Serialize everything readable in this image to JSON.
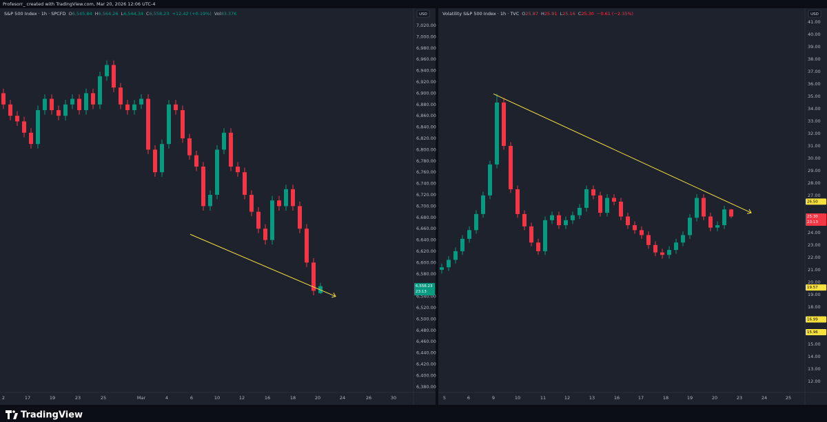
{
  "header": "Profesorr_ created with TradingView.com, Mar 20, 2026 12:06 UTC-4",
  "footer": "TradingView",
  "chart_data": [
    {
      "type": "candlestick",
      "symbol": "S&P 500 Index · 1h · SPCFD",
      "legend_items": [
        {
          "key": "O",
          "text": "6,545.84"
        },
        {
          "key": "H",
          "text": "6,564.26"
        },
        {
          "key": "L",
          "text": "6,544.34"
        },
        {
          "key": "C",
          "text": "6,558.23"
        },
        {
          "key": "",
          "text": "+12.42 (+0.19%)"
        },
        {
          "key": "Vol",
          "text": "83.37K"
        }
      ],
      "legend_color": "#089981",
      "currency": "USD",
      "up_color": "#089981",
      "down_color": "#f23645",
      "x": [
        1,
        3,
        5,
        7,
        9,
        11,
        13,
        15,
        17,
        19,
        21,
        23,
        25,
        27,
        29,
        31,
        33,
        35,
        37,
        39,
        41,
        43,
        45,
        47,
        49,
        51,
        53,
        55,
        57,
        59,
        61,
        63,
        65,
        67,
        69,
        71,
        73,
        75,
        77,
        79,
        81,
        83,
        85,
        87,
        89,
        91,
        93
      ],
      "open": [
        6900,
        6880,
        6860,
        6850,
        6830,
        6810,
        6870,
        6890,
        6870,
        6860,
        6880,
        6890,
        6870,
        6900,
        6880,
        6930,
        6950,
        6910,
        6880,
        6870,
        6880,
        6890,
        6800,
        6760,
        6810,
        6880,
        6870,
        6820,
        6790,
        6770,
        6700,
        6720,
        6800,
        6830,
        6770,
        6760,
        6720,
        6690,
        6660,
        6640,
        6710,
        6700,
        6730,
        6700,
        6660,
        6600,
        6545.84
      ],
      "high": [
        6908,
        6888,
        6868,
        6858,
        6838,
        6878,
        6898,
        6898,
        6878,
        6888,
        6898,
        6898,
        6908,
        6908,
        6938,
        6958,
        6958,
        6918,
        6888,
        6888,
        6898,
        6898,
        6808,
        6818,
        6888,
        6888,
        6878,
        6828,
        6798,
        6778,
        6728,
        6808,
        6838,
        6838,
        6778,
        6768,
        6728,
        6698,
        6668,
        6718,
        6718,
        6738,
        6738,
        6708,
        6668,
        6608,
        6564.26
      ],
      "low": [
        6872,
        6852,
        6842,
        6822,
        6802,
        6802,
        6862,
        6862,
        6852,
        6852,
        6872,
        6862,
        6862,
        6872,
        6872,
        6922,
        6902,
        6872,
        6862,
        6862,
        6872,
        6792,
        6752,
        6752,
        6802,
        6862,
        6812,
        6782,
        6762,
        6692,
        6692,
        6712,
        6792,
        6762,
        6752,
        6712,
        6682,
        6652,
        6632,
        6632,
        6692,
        6692,
        6692,
        6652,
        6592,
        6542,
        6544.34
      ],
      "close": [
        6880,
        6860,
        6850,
        6830,
        6810,
        6870,
        6890,
        6870,
        6860,
        6880,
        6890,
        6870,
        6900,
        6880,
        6930,
        6950,
        6910,
        6880,
        6870,
        6880,
        6890,
        6800,
        6760,
        6810,
        6880,
        6870,
        6820,
        6790,
        6770,
        6700,
        6720,
        6800,
        6830,
        6770,
        6760,
        6720,
        6690,
        6660,
        6640,
        6710,
        6700,
        6730,
        6700,
        6660,
        6600,
        6550,
        6558.23
      ],
      "xlim": [
        0,
        120
      ],
      "xticks": [
        {
          "value": 1,
          "label": "2"
        },
        {
          "value": 8,
          "label": "17"
        },
        {
          "value": 15.2,
          "label": "19"
        },
        {
          "value": 22.6,
          "label": "23"
        },
        {
          "value": 30,
          "label": "25"
        },
        {
          "value": 41,
          "label": "Mar"
        },
        {
          "value": 48.4,
          "label": "4"
        },
        {
          "value": 55.6,
          "label": "6"
        },
        {
          "value": 63,
          "label": "10"
        },
        {
          "value": 70.2,
          "label": "12"
        },
        {
          "value": 77.6,
          "label": "16"
        },
        {
          "value": 85,
          "label": "18"
        },
        {
          "value": 92.2,
          "label": "20"
        },
        {
          "value": 99.4,
          "label": "24"
        },
        {
          "value": 107,
          "label": "26"
        },
        {
          "value": 114.2,
          "label": "30"
        }
      ],
      "ylim": [
        6370,
        7048
      ],
      "yticks": [
        {
          "value": 6380,
          "label": "6,380.00"
        },
        {
          "value": 6400,
          "label": "6,400.00"
        },
        {
          "value": 6420,
          "label": "6,420.00"
        },
        {
          "value": 6440,
          "label": "6,440.00"
        },
        {
          "value": 6460,
          "label": "6,460.00"
        },
        {
          "value": 6480,
          "label": "6,480.00"
        },
        {
          "value": 6500,
          "label": "6,500.00"
        },
        {
          "value": 6520,
          "label": "6,520.00"
        },
        {
          "value": 6540,
          "label": "6,540.00"
        },
        {
          "value": 6580,
          "label": "6,580.00"
        },
        {
          "value": 6600,
          "label": "6,600.00"
        },
        {
          "value": 6620,
          "label": "6,620.00"
        },
        {
          "value": 6640,
          "label": "6,640.00"
        },
        {
          "value": 6660,
          "label": "6,660.00"
        },
        {
          "value": 6680,
          "label": "6,680.00"
        },
        {
          "value": 6700,
          "label": "6,700.00"
        },
        {
          "value": 6720,
          "label": "6,720.00"
        },
        {
          "value": 6740,
          "label": "6,740.00"
        },
        {
          "value": 6760,
          "label": "6,760.00"
        },
        {
          "value": 6780,
          "label": "6,780.00"
        },
        {
          "value": 6800,
          "label": "6,800.00"
        },
        {
          "value": 6820,
          "label": "6,820.00"
        },
        {
          "value": 6840,
          "label": "6,840.00"
        },
        {
          "value": 6860,
          "label": "6,860.00"
        },
        {
          "value": 6880,
          "label": "6,880.00"
        },
        {
          "value": 6900,
          "label": "6,900.00"
        },
        {
          "value": 6920,
          "label": "6,920.00"
        },
        {
          "value": 6940,
          "label": "6,940.00"
        },
        {
          "value": 6960,
          "label": "6,960.00"
        },
        {
          "value": 6980,
          "label": "6,980.00"
        },
        {
          "value": 7000,
          "label": "7,000.00"
        },
        {
          "value": 7020,
          "label": "7,020.00"
        }
      ],
      "grid": false,
      "trendline": {
        "x": [
          55.2,
          97.4
        ],
        "y": [
          6650,
          6540
        ],
        "color": "#f7e13c"
      },
      "price_labels": [
        {
          "value": 6558.23,
          "label": "6,558.23",
          "color": "#089981",
          "text_color": "#ffffff",
          "countdown": "23:13"
        }
      ]
    },
    {
      "type": "candlestick",
      "symbol": "Volatility S&P 500 Index · 1h · TVC",
      "legend_items": [
        {
          "key": "O",
          "text": "25.87"
        },
        {
          "key": "H",
          "text": "25.91"
        },
        {
          "key": "L",
          "text": "25.16"
        },
        {
          "key": "C",
          "text": "25.30"
        },
        {
          "key": "",
          "text": "−0.61 (−2.35%)"
        }
      ],
      "legend_color": "#f23645",
      "currency": "USD",
      "up_color": "#089981",
      "down_color": "#f23645",
      "x": [
        1,
        3,
        5,
        7,
        9,
        11,
        13,
        15,
        17,
        19,
        21,
        23,
        25,
        27,
        29,
        31,
        33,
        35,
        37,
        39,
        41,
        43,
        45,
        47,
        49,
        51,
        53,
        55,
        57,
        59,
        61,
        63,
        65,
        67,
        69,
        71,
        73,
        75,
        77,
        79,
        81,
        83,
        85
      ],
      "open": [
        21.0,
        21.2,
        21.8,
        22.5,
        23.5,
        24.2,
        25.5,
        27,
        29.5,
        34.5,
        31,
        27.5,
        25.5,
        24.5,
        23.2,
        22.5,
        25,
        25.4,
        24.6,
        25,
        25.4,
        26,
        27.5,
        27,
        25.6,
        26.8,
        26.5,
        25.3,
        24.6,
        24.2,
        23.8,
        23,
        22.4,
        22.2,
        22.6,
        23.2,
        23.8,
        25.2,
        26.8,
        25.3,
        24.4,
        24.6,
        25.87
      ],
      "high": [
        21.5,
        22.1,
        22.8,
        23.8,
        24.5,
        25.8,
        27.3,
        29.8,
        35.2,
        34.8,
        31.3,
        27.8,
        25.8,
        24.8,
        23.5,
        25.3,
        25.7,
        25.7,
        25.3,
        25.7,
        26.3,
        27.8,
        27.8,
        27.3,
        27.1,
        27.1,
        26.8,
        25.6,
        24.9,
        24.5,
        24.1,
        23.3,
        22.7,
        22.9,
        23.5,
        24.1,
        25.5,
        27.1,
        27.1,
        25.6,
        24.9,
        26.17,
        25.91
      ],
      "low": [
        20.7,
        20.9,
        21.5,
        22.2,
        23.2,
        23.9,
        25.2,
        26.7,
        29.2,
        30.7,
        27.2,
        25.2,
        24.2,
        22.9,
        22.2,
        22.2,
        24.7,
        24.3,
        24.3,
        24.7,
        25.1,
        25.7,
        26.7,
        25.3,
        25.3,
        26.2,
        25.0,
        24.3,
        23.9,
        23.5,
        22.7,
        22.1,
        21.9,
        21.9,
        22.3,
        22.9,
        23.5,
        24.9,
        25.0,
        24.1,
        24.1,
        24.3,
        25.16
      ],
      "close": [
        21.2,
        21.8,
        22.5,
        23.5,
        24.2,
        25.5,
        27,
        29.5,
        34.5,
        31,
        27.5,
        25.5,
        24.5,
        23.2,
        22.5,
        25,
        25.4,
        24.6,
        25,
        25.4,
        26,
        27.5,
        27,
        25.6,
        26.8,
        26.5,
        25.3,
        24.6,
        24.2,
        23.8,
        23,
        22.4,
        22.2,
        22.6,
        23.2,
        23.8,
        25.2,
        26.8,
        25.3,
        24.4,
        24.6,
        25.87,
        25.3
      ],
      "xlim": [
        0,
        106.4
      ],
      "xticks": [
        {
          "value": 1.8,
          "label": "5"
        },
        {
          "value": 8.8,
          "label": "6"
        },
        {
          "value": 16,
          "label": "9"
        },
        {
          "value": 23,
          "label": "10"
        },
        {
          "value": 30.4,
          "label": "11"
        },
        {
          "value": 37.4,
          "label": "12"
        },
        {
          "value": 44.6,
          "label": "13"
        },
        {
          "value": 51.8,
          "label": "16"
        },
        {
          "value": 58.8,
          "label": "17"
        },
        {
          "value": 66,
          "label": "18"
        },
        {
          "value": 73,
          "label": "19"
        },
        {
          "value": 80.2,
          "label": "20"
        },
        {
          "value": 87.4,
          "label": "23"
        },
        {
          "value": 94.6,
          "label": "24"
        },
        {
          "value": 101.6,
          "label": "25"
        }
      ],
      "ylim": [
        11.1,
        42
      ],
      "yticks": [
        {
          "value": 12,
          "label": "12.00"
        },
        {
          "value": 13,
          "label": "13.00"
        },
        {
          "value": 14,
          "label": "14.00"
        },
        {
          "value": 15,
          "label": "15.00"
        },
        {
          "value": 17,
          "label": "17.00"
        },
        {
          "value": 18,
          "label": "18.00"
        },
        {
          "value": 19,
          "label": "19.00"
        },
        {
          "value": 20,
          "label": "20.00"
        },
        {
          "value": 21,
          "label": "21.00"
        },
        {
          "value": 22,
          "label": "22.00"
        },
        {
          "value": 23,
          "label": "23.00"
        },
        {
          "value": 24,
          "label": "24.00"
        },
        {
          "value": 27,
          "label": "27.00"
        },
        {
          "value": 28,
          "label": "28.00"
        },
        {
          "value": 29,
          "label": "29.00"
        },
        {
          "value": 30,
          "label": "30.00"
        },
        {
          "value": 31,
          "label": "31.00"
        },
        {
          "value": 32,
          "label": "32.00"
        },
        {
          "value": 33,
          "label": "33.00"
        },
        {
          "value": 34,
          "label": "34.00"
        },
        {
          "value": 35,
          "label": "35.00"
        },
        {
          "value": 36,
          "label": "36.00"
        },
        {
          "value": 37,
          "label": "37.00"
        },
        {
          "value": 38,
          "label": "38.00"
        },
        {
          "value": 39,
          "label": "39.00"
        },
        {
          "value": 40,
          "label": "40.00"
        },
        {
          "value": 41,
          "label": "41.00"
        }
      ],
      "grid": false,
      "trendline": {
        "x": [
          16,
          90.8
        ],
        "y": [
          35.2,
          25.6
        ],
        "color": "#f7e13c"
      },
      "price_labels": [
        {
          "value": 26.5,
          "label": "26.50",
          "color": "#f7e13c",
          "text_color": "#000000"
        },
        {
          "value": 25.3,
          "label": "25.30",
          "color": "#f23645",
          "text_color": "#ffffff",
          "countdown": "23:13"
        },
        {
          "value": 19.57,
          "label": "19.57",
          "color": "#f7e13c",
          "text_color": "#000000"
        },
        {
          "value": 16.99,
          "label": "16.99",
          "color": "#f7e13c",
          "text_color": "#000000"
        },
        {
          "value": 15.96,
          "label": "15.96",
          "color": "#f7e13c",
          "text_color": "#000000"
        }
      ]
    }
  ]
}
